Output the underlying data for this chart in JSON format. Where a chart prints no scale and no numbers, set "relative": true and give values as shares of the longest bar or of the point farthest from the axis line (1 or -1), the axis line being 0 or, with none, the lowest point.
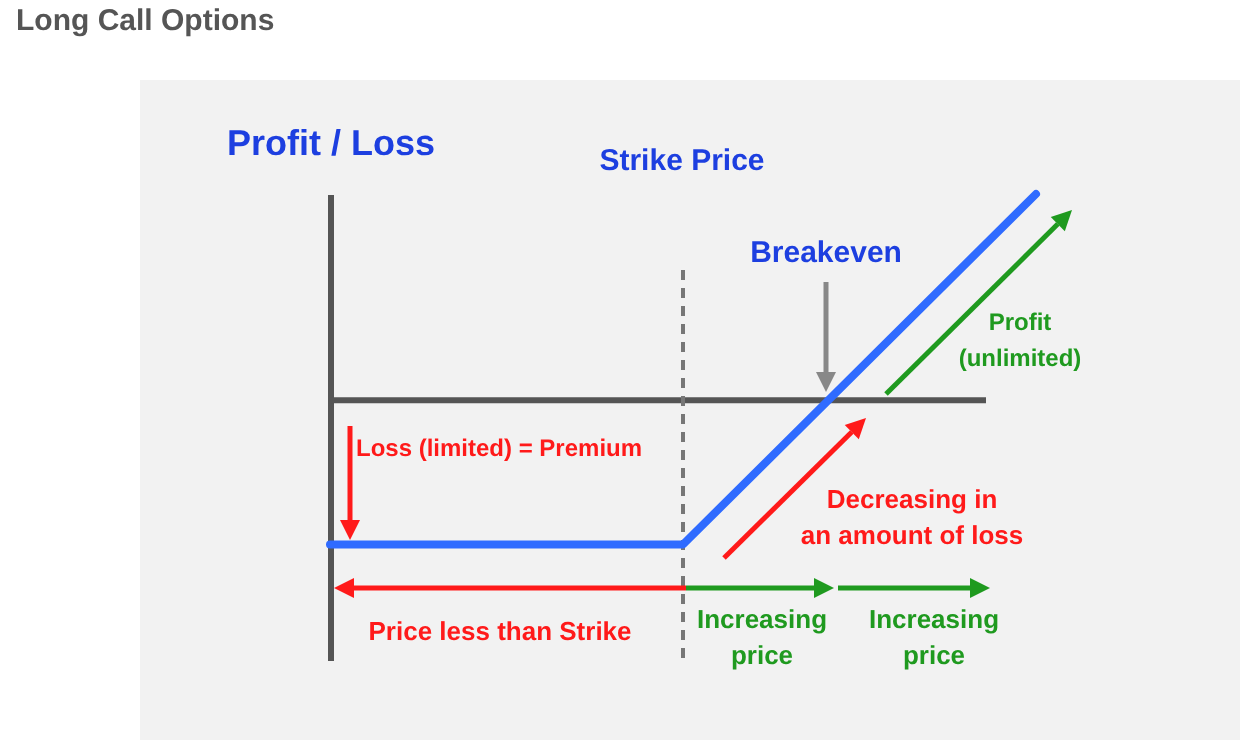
{
  "chart_data": {
    "type": "line",
    "title": "Long Call Options",
    "ylabel": "Profit / Loss",
    "categories": [
      null,
      null,
      null
    ],
    "relative": true,
    "series": [
      {
        "color": "#2f6bff",
        "values": [
          -0.7,
          -0.7,
          1
        ]
      }
    ],
    "annotations": [
      "Breakeven",
      "Profit (unlimited)",
      "Loss (limited) = Premium",
      "Decreasing in an amount of loss",
      "Price less than Strike",
      "Increasing price",
      "Increasing price",
      "Strike Price"
    ],
    "marker": "none",
    "line_style": "solid",
    "grid": false
  }
}
